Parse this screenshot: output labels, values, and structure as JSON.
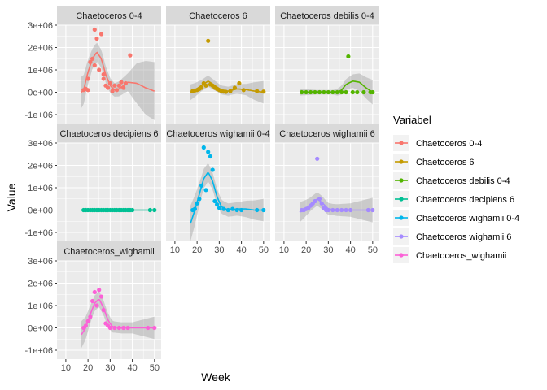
{
  "chart_data": {
    "type": "scatter",
    "xlabel": "Week",
    "ylabel": "Value",
    "xlim": [
      6,
      53
    ],
    "ylim": [
      -1400000,
      3000000
    ],
    "x_ticks": [
      10,
      20,
      30,
      40,
      50
    ],
    "x_tick_labels": [
      "10",
      "20",
      "30",
      "40",
      "50"
    ],
    "y_ticks": [
      -1000000,
      0,
      1000000,
      2000000,
      3000000
    ],
    "y_tick_labels": [
      "-1e+06",
      "0e+00",
      "1e+06",
      "2e+06",
      "3e+06"
    ],
    "grid": true,
    "smooth_with_confidence_band": true,
    "legend": {
      "title": "Variabel",
      "position": "right",
      "entries": [
        "Chaetoceros 0-4",
        "Chaetoceros 6",
        "Chaetoceros debilis 0-4",
        "Chaetoceros decipiens 6",
        "Chaetoceros wighamii 0-4",
        "Chaetoceros wighamii 6",
        "Chaetoceros_wighamii"
      ]
    },
    "facets": [
      {
        "title": "Chaetoceros 0-4",
        "color": "#F8766D",
        "points": [
          [
            18,
            100000
          ],
          [
            19,
            150000
          ],
          [
            20,
            600000
          ],
          [
            20,
            100000
          ],
          [
            21,
            1350000
          ],
          [
            22,
            1500000
          ],
          [
            23,
            2800000
          ],
          [
            23,
            1200000
          ],
          [
            24,
            2400000
          ],
          [
            25,
            1000000
          ],
          [
            26,
            2600000
          ],
          [
            27,
            800000
          ],
          [
            27,
            600000
          ],
          [
            28,
            300000
          ],
          [
            29,
            200000
          ],
          [
            30,
            400000
          ],
          [
            31,
            50000
          ],
          [
            32,
            300000
          ],
          [
            33,
            100000
          ],
          [
            34,
            300000
          ],
          [
            35,
            450000
          ],
          [
            36,
            200000
          ],
          [
            37,
            400000
          ],
          [
            39,
            1650000
          ]
        ],
        "smooth": [
          [
            17,
            0
          ],
          [
            18,
            100000
          ],
          [
            20,
            900000
          ],
          [
            22,
            1500000
          ],
          [
            24,
            1800000
          ],
          [
            26,
            1500000
          ],
          [
            28,
            800000
          ],
          [
            30,
            300000
          ],
          [
            32,
            100000
          ],
          [
            34,
            150000
          ],
          [
            38,
            450000
          ],
          [
            42,
            400000
          ],
          [
            46,
            200000
          ],
          [
            50,
            50000
          ]
        ],
        "band_halfwidth": [
          [
            17,
            700000
          ],
          [
            22,
            450000
          ],
          [
            26,
            400000
          ],
          [
            32,
            300000
          ],
          [
            38,
            400000
          ],
          [
            42,
            900000
          ],
          [
            46,
            1200000
          ],
          [
            50,
            1300000
          ]
        ]
      },
      {
        "title": "Chaetoceros 6",
        "color": "#C49A00",
        "points": [
          [
            18,
            50000
          ],
          [
            19,
            80000
          ],
          [
            20,
            100000
          ],
          [
            21,
            150000
          ],
          [
            22,
            200000
          ],
          [
            23,
            400000
          ],
          [
            24,
            300000
          ],
          [
            25,
            2300000
          ],
          [
            26,
            350000
          ],
          [
            27,
            300000
          ],
          [
            28,
            200000
          ],
          [
            29,
            150000
          ],
          [
            30,
            100000
          ],
          [
            31,
            50000
          ],
          [
            32,
            30000
          ],
          [
            33,
            20000
          ],
          [
            35,
            50000
          ],
          [
            37,
            200000
          ],
          [
            39,
            400000
          ],
          [
            41,
            100000
          ],
          [
            47,
            50000
          ],
          [
            50,
            30000
          ]
        ],
        "smooth": [
          [
            17,
            0
          ],
          [
            19,
            100000
          ],
          [
            22,
            300000
          ],
          [
            25,
            500000
          ],
          [
            28,
            300000
          ],
          [
            31,
            100000
          ],
          [
            34,
            50000
          ],
          [
            38,
            150000
          ],
          [
            42,
            120000
          ],
          [
            46,
            50000
          ],
          [
            50,
            0
          ]
        ],
        "band_halfwidth": [
          [
            17,
            350000
          ],
          [
            22,
            250000
          ],
          [
            25,
            250000
          ],
          [
            30,
            200000
          ],
          [
            36,
            200000
          ],
          [
            42,
            250000
          ],
          [
            46,
            400000
          ],
          [
            50,
            500000
          ]
        ]
      },
      {
        "title": "Chaetoceros debilis 0-4",
        "color": "#53B400",
        "points": [
          [
            18,
            0
          ],
          [
            20,
            0
          ],
          [
            22,
            0
          ],
          [
            24,
            0
          ],
          [
            26,
            0
          ],
          [
            28,
            0
          ],
          [
            30,
            0
          ],
          [
            32,
            0
          ],
          [
            34,
            0
          ],
          [
            36,
            0
          ],
          [
            38,
            0
          ],
          [
            39,
            1600000
          ],
          [
            41,
            0
          ],
          [
            43,
            0
          ],
          [
            46,
            0
          ],
          [
            49,
            0
          ],
          [
            50,
            0
          ]
        ],
        "smooth": [
          [
            17,
            0
          ],
          [
            20,
            0
          ],
          [
            25,
            0
          ],
          [
            30,
            0
          ],
          [
            34,
            0
          ],
          [
            36,
            100000
          ],
          [
            38,
            350000
          ],
          [
            41,
            500000
          ],
          [
            44,
            450000
          ],
          [
            47,
            200000
          ],
          [
            50,
            0
          ]
        ],
        "band_halfwidth": [
          [
            17,
            150000
          ],
          [
            25,
            100000
          ],
          [
            32,
            100000
          ],
          [
            36,
            200000
          ],
          [
            41,
            300000
          ],
          [
            46,
            450000
          ],
          [
            50,
            550000
          ]
        ]
      },
      {
        "title": "Chaetoceros decipiens 6",
        "color": "#00C094",
        "points": [
          [
            18,
            0
          ],
          [
            19,
            0
          ],
          [
            20,
            0
          ],
          [
            21,
            0
          ],
          [
            22,
            0
          ],
          [
            23,
            0
          ],
          [
            24,
            0
          ],
          [
            25,
            0
          ],
          [
            26,
            0
          ],
          [
            27,
            0
          ],
          [
            28,
            0
          ],
          [
            29,
            0
          ],
          [
            30,
            0
          ],
          [
            31,
            0
          ],
          [
            32,
            0
          ],
          [
            33,
            0
          ],
          [
            34,
            0
          ],
          [
            35,
            0
          ],
          [
            36,
            0
          ],
          [
            37,
            0
          ],
          [
            38,
            0
          ],
          [
            39,
            0
          ],
          [
            40,
            0
          ],
          [
            48,
            0
          ],
          [
            50,
            0
          ]
        ],
        "smooth": [
          [
            17,
            0
          ],
          [
            50,
            0
          ]
        ],
        "band_halfwidth": [
          [
            17,
            30000
          ],
          [
            50,
            30000
          ]
        ]
      },
      {
        "title": "Chaetoceros wighamii 0-4",
        "color": "#00B6EB",
        "points": [
          [
            18,
            0
          ],
          [
            19,
            50000
          ],
          [
            20,
            300000
          ],
          [
            21,
            500000
          ],
          [
            22,
            1100000
          ],
          [
            23,
            2800000
          ],
          [
            24,
            900000
          ],
          [
            25,
            2600000
          ],
          [
            26,
            2400000
          ],
          [
            27,
            1800000
          ],
          [
            28,
            400000
          ],
          [
            29,
            250000
          ],
          [
            30,
            100000
          ],
          [
            32,
            50000
          ],
          [
            34,
            0
          ],
          [
            36,
            50000
          ],
          [
            38,
            0
          ],
          [
            40,
            0
          ],
          [
            47,
            0
          ],
          [
            50,
            0
          ]
        ],
        "smooth": [
          [
            17,
            -600000
          ],
          [
            19,
            0
          ],
          [
            21,
            700000
          ],
          [
            23,
            1400000
          ],
          [
            25,
            1700000
          ],
          [
            27,
            1300000
          ],
          [
            29,
            600000
          ],
          [
            31,
            150000
          ],
          [
            34,
            0
          ],
          [
            38,
            50000
          ],
          [
            42,
            50000
          ],
          [
            46,
            0
          ],
          [
            50,
            0
          ]
        ],
        "band_halfwidth": [
          [
            17,
            800000
          ],
          [
            22,
            450000
          ],
          [
            26,
            400000
          ],
          [
            32,
            300000
          ],
          [
            38,
            300000
          ],
          [
            44,
            400000
          ],
          [
            50,
            500000
          ]
        ]
      },
      {
        "title": "Chaetoceros wighamii 6",
        "color": "#A58AFF",
        "points": [
          [
            18,
            0
          ],
          [
            19,
            0
          ],
          [
            20,
            50000
          ],
          [
            21,
            100000
          ],
          [
            22,
            200000
          ],
          [
            23,
            300000
          ],
          [
            24,
            400000
          ],
          [
            25,
            2300000
          ],
          [
            26,
            500000
          ],
          [
            27,
            300000
          ],
          [
            28,
            100000
          ],
          [
            29,
            0
          ],
          [
            30,
            0
          ],
          [
            32,
            0
          ],
          [
            34,
            0
          ],
          [
            36,
            0
          ],
          [
            38,
            0
          ],
          [
            40,
            0
          ],
          [
            48,
            0
          ],
          [
            50,
            0
          ]
        ],
        "smooth": [
          [
            17,
            -100000
          ],
          [
            20,
            100000
          ],
          [
            23,
            350000
          ],
          [
            25,
            500000
          ],
          [
            27,
            350000
          ],
          [
            30,
            50000
          ],
          [
            34,
            0
          ],
          [
            40,
            0
          ],
          [
            45,
            0
          ],
          [
            50,
            0
          ]
        ],
        "band_halfwidth": [
          [
            17,
            450000
          ],
          [
            22,
            300000
          ],
          [
            26,
            300000
          ],
          [
            32,
            250000
          ],
          [
            40,
            300000
          ],
          [
            46,
            450000
          ],
          [
            50,
            550000
          ]
        ]
      },
      {
        "title": "Chaetoceros_wighamii",
        "color": "#FB61D7",
        "points": [
          [
            18,
            0
          ],
          [
            19,
            100000
          ],
          [
            20,
            300000
          ],
          [
            21,
            500000
          ],
          [
            22,
            1200000
          ],
          [
            23,
            1600000
          ],
          [
            24,
            1000000
          ],
          [
            25,
            1700000
          ],
          [
            26,
            1400000
          ],
          [
            27,
            800000
          ],
          [
            28,
            200000
          ],
          [
            29,
            100000
          ],
          [
            30,
            0
          ],
          [
            32,
            0
          ],
          [
            34,
            0
          ],
          [
            36,
            0
          ],
          [
            38,
            0
          ],
          [
            47,
            0
          ],
          [
            50,
            0
          ]
        ],
        "smooth": [
          [
            17,
            -300000
          ],
          [
            19,
            0
          ],
          [
            21,
            600000
          ],
          [
            23,
            1100000
          ],
          [
            25,
            1300000
          ],
          [
            27,
            900000
          ],
          [
            29,
            350000
          ],
          [
            31,
            50000
          ],
          [
            35,
            0
          ],
          [
            40,
            0
          ],
          [
            45,
            0
          ],
          [
            50,
            0
          ]
        ],
        "band_halfwidth": [
          [
            17,
            600000
          ],
          [
            22,
            350000
          ],
          [
            26,
            350000
          ],
          [
            32,
            250000
          ],
          [
            40,
            250000
          ],
          [
            46,
            400000
          ],
          [
            50,
            500000
          ]
        ]
      }
    ]
  }
}
